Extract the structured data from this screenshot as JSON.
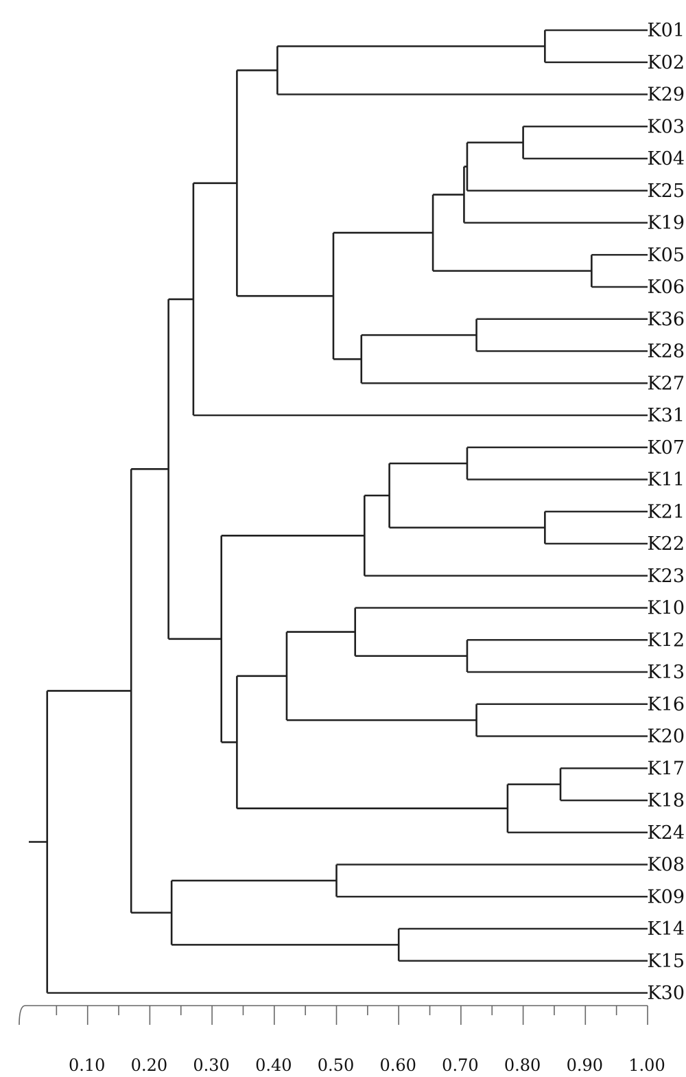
{
  "chart_data": {
    "type": "dendrogram",
    "title": "",
    "xlabel": "",
    "ylabel": "",
    "xlim": [
      0.0,
      1.0
    ],
    "grid": false,
    "axis_ticks": [
      {
        "value": 0.1,
        "label": "0.10"
      },
      {
        "value": 0.2,
        "label": "0.20"
      },
      {
        "value": 0.3,
        "label": "0.30"
      },
      {
        "value": 0.4,
        "label": "0.40"
      },
      {
        "value": 0.5,
        "label": "0.50"
      },
      {
        "value": 0.6,
        "label": "0.60"
      },
      {
        "value": 0.7,
        "label": "0.70"
      },
      {
        "value": 0.8,
        "label": "0.80"
      },
      {
        "value": 0.9,
        "label": "0.90"
      },
      {
        "value": 1.0,
        "label": "1.00"
      }
    ],
    "leaves": [
      "K01",
      "K02",
      "K29",
      "K03",
      "K04",
      "K25",
      "K19",
      "K05",
      "K06",
      "K36",
      "K28",
      "K27",
      "K31",
      "K07",
      "K11",
      "K21",
      "K22",
      "K23",
      "K10",
      "K12",
      "K13",
      "K16",
      "K20",
      "K17",
      "K18",
      "K24",
      "K08",
      "K09",
      "K14",
      "K15",
      "K30"
    ],
    "tree": {
      "h": 0.035,
      "c": [
        {
          "h": 0.17,
          "c": [
            {
              "h": 0.23,
              "c": [
                {
                  "h": 0.27,
                  "c": [
                    {
                      "h": 0.34,
                      "c": [
                        {
                          "h": 0.405,
                          "c": [
                            {
                              "h": 0.835,
                              "c": [
                                {
                                  "leaf": "K01"
                                },
                                {
                                  "leaf": "K02"
                                }
                              ]
                            },
                            {
                              "leaf": "K29"
                            }
                          ]
                        },
                        {
                          "h": 0.495,
                          "c": [
                            {
                              "h": 0.655,
                              "c": [
                                {
                                  "h": 0.705,
                                  "c": [
                                    {
                                      "h": 0.71,
                                      "c": [
                                        {
                                          "h": 0.8,
                                          "c": [
                                            {
                                              "leaf": "K03"
                                            },
                                            {
                                              "leaf": "K04"
                                            }
                                          ]
                                        },
                                        {
                                          "leaf": "K25"
                                        }
                                      ]
                                    },
                                    {
                                      "leaf": "K19"
                                    }
                                  ]
                                },
                                {
                                  "h": 0.91,
                                  "c": [
                                    {
                                      "leaf": "K05"
                                    },
                                    {
                                      "leaf": "K06"
                                    }
                                  ]
                                }
                              ]
                            },
                            {
                              "h": 0.54,
                              "c": [
                                {
                                  "h": 0.725,
                                  "c": [
                                    {
                                      "leaf": "K36"
                                    },
                                    {
                                      "leaf": "K28"
                                    }
                                  ]
                                },
                                {
                                  "leaf": "K27"
                                }
                              ]
                            }
                          ]
                        }
                      ]
                    },
                    {
                      "leaf": "K31"
                    }
                  ]
                },
                {
                  "h": 0.315,
                  "c": [
                    {
                      "h": 0.545,
                      "c": [
                        {
                          "h": 0.585,
                          "c": [
                            {
                              "h": 0.71,
                              "c": [
                                {
                                  "leaf": "K07"
                                },
                                {
                                  "leaf": "K11"
                                }
                              ]
                            },
                            {
                              "h": 0.835,
                              "c": [
                                {
                                  "leaf": "K21"
                                },
                                {
                                  "leaf": "K22"
                                }
                              ]
                            }
                          ]
                        },
                        {
                          "leaf": "K23"
                        }
                      ]
                    },
                    {
                      "h": 0.34,
                      "c": [
                        {
                          "h": 0.42,
                          "c": [
                            {
                              "h": 0.53,
                              "c": [
                                {
                                  "leaf": "K10"
                                },
                                {
                                  "h": 0.71,
                                  "c": [
                                    {
                                      "leaf": "K12"
                                    },
                                    {
                                      "leaf": "K13"
                                    }
                                  ]
                                }
                              ]
                            },
                            {
                              "h": 0.725,
                              "c": [
                                {
                                  "leaf": "K16"
                                },
                                {
                                  "leaf": "K20"
                                }
                              ]
                            }
                          ]
                        },
                        {
                          "h": 0.775,
                          "c": [
                            {
                              "h": 0.86,
                              "c": [
                                {
                                  "leaf": "K17"
                                },
                                {
                                  "leaf": "K18"
                                }
                              ]
                            },
                            {
                              "leaf": "K24"
                            }
                          ]
                        }
                      ]
                    }
                  ]
                }
              ]
            },
            {
              "h": 0.235,
              "c": [
                {
                  "h": 0.5,
                  "c": [
                    {
                      "leaf": "K08"
                    },
                    {
                      "leaf": "K09"
                    }
                  ]
                },
                {
                  "h": 0.6,
                  "c": [
                    {
                      "leaf": "K14"
                    },
                    {
                      "leaf": "K15"
                    }
                  ]
                }
              ]
            }
          ]
        },
        {
          "leaf": "K30"
        }
      ]
    }
  }
}
